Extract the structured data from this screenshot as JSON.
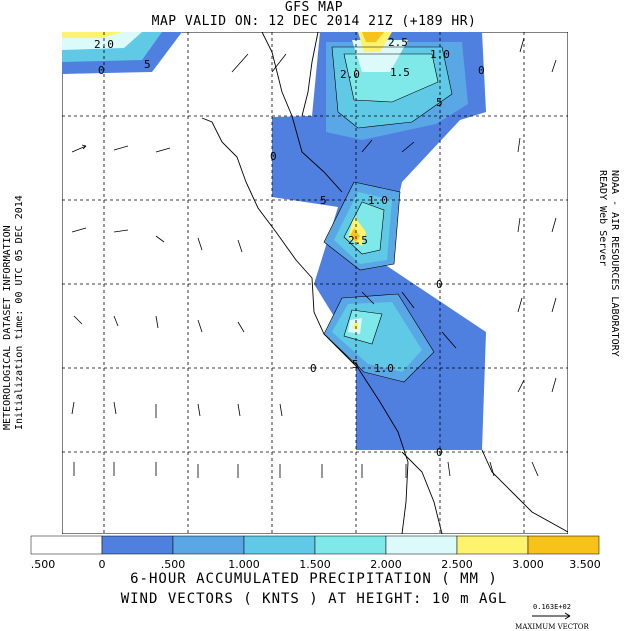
{
  "header": {
    "title": "GFS MAP",
    "valid": "MAP VALID ON: 12 DEC 2014 21Z (+189 HR)"
  },
  "sidebar_left": {
    "line1": "METEOROLOGICAL DATASET INFORMATION",
    "line2": "Initialization time: 00 UTC 05 DEC 2014"
  },
  "sidebar_right": {
    "line1": "NOAA - AIR RESOURCES LABORATORY",
    "line2": "READY Web Server"
  },
  "contour_labels": [
    "2.0",
    "0",
    "5",
    "2.5",
    "1.0",
    "0",
    "2.0",
    "1.5",
    "5",
    "0",
    "5",
    "1.0",
    "2.5",
    "0",
    "0",
    "5",
    "1.0",
    "0"
  ],
  "colorbar": {
    "ticks": [
      "-.500",
      "0",
      ".500",
      "1.000",
      "1.500",
      "2.000",
      "2.500",
      "3.000",
      "3.500"
    ],
    "colors": [
      "#ffffff",
      "#4f7fdf",
      "#5aa7e5",
      "#5fc9e6",
      "#7fe8e8",
      "#dcfafa",
      "#fef36c",
      "#f7c21a"
    ]
  },
  "legend": {
    "precip": "6-HOUR ACCUMULATED PRECIPITATION ( MM   )",
    "wind": "WIND VECTORS ( KNTS ) AT HEIGHT: 10 m AGL"
  },
  "max_vector": {
    "value": "0.163E+02",
    "label": "MAXIMUM VECTOR"
  }
}
